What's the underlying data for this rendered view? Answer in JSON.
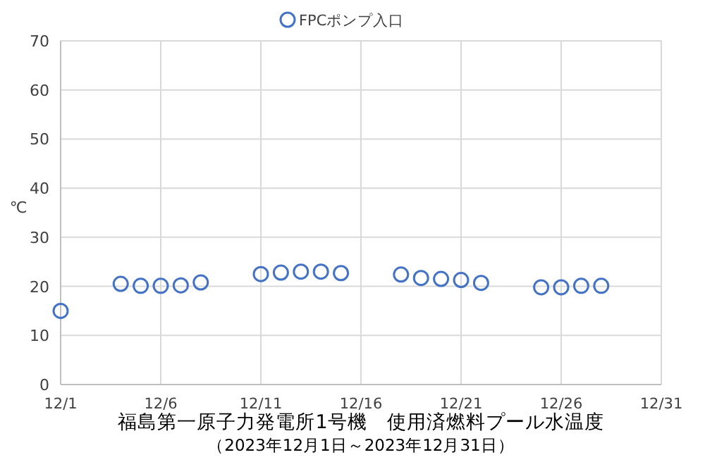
{
  "chart_data": {
    "type": "scatter",
    "title": "福島第一原子力発電所1号機　使用済燃料プール水温度",
    "subtitle": "（2023年12月1日～2023年12月31日）",
    "ylabel": "℃",
    "x": [
      "2023-12-01",
      "2023-12-04",
      "2023-12-05",
      "2023-12-06",
      "2023-12-07",
      "2023-12-08",
      "2023-12-11",
      "2023-12-12",
      "2023-12-13",
      "2023-12-14",
      "2023-12-15",
      "2023-12-18",
      "2023-12-19",
      "2023-12-20",
      "2023-12-21",
      "2023-12-22",
      "2023-12-25",
      "2023-12-26",
      "2023-12-27",
      "2023-12-28"
    ],
    "series": [
      {
        "name": "FPCポンプ入口",
        "color": "#4472c4",
        "values": [
          15,
          20.5,
          20.1,
          20.1,
          20.2,
          20.8,
          22.5,
          22.8,
          23,
          23,
          22.7,
          22.4,
          21.7,
          21.5,
          21.3,
          20.7,
          19.8,
          19.8,
          20.1,
          20.1
        ]
      }
    ],
    "xlim": [
      "2023-12-01",
      "2023-12-31"
    ],
    "xticks": [
      {
        "value": "2023-12-01",
        "label": "12/1"
      },
      {
        "value": "2023-12-06",
        "label": "12/6"
      },
      {
        "value": "2023-12-11",
        "label": "12/11"
      },
      {
        "value": "2023-12-16",
        "label": "12/16"
      },
      {
        "value": "2023-12-21",
        "label": "12/21"
      },
      {
        "value": "2023-12-26",
        "label": "12/26"
      },
      {
        "value": "2023-12-31",
        "label": "12/31"
      }
    ],
    "ylim": [
      0,
      70
    ],
    "yticks": [
      0,
      10,
      20,
      30,
      40,
      50,
      60,
      70
    ],
    "grid": true,
    "legend": "top",
    "marker": "circle"
  }
}
